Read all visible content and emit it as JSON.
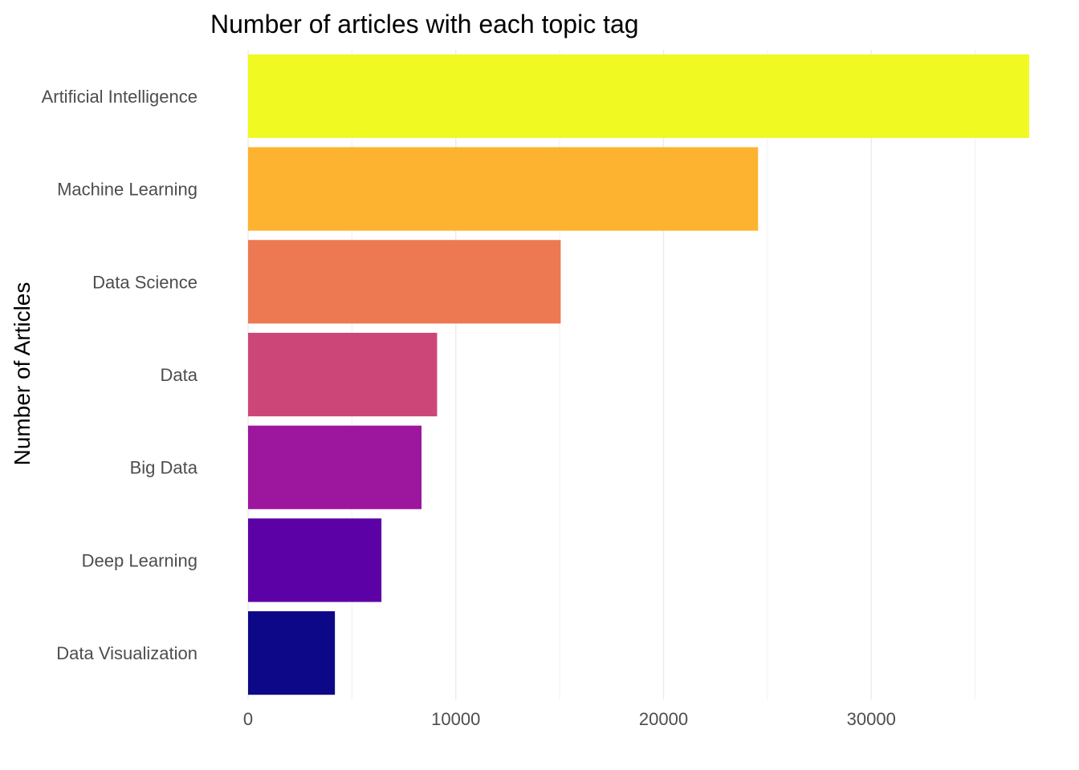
{
  "chart_data": {
    "type": "bar",
    "orientation": "horizontal",
    "title": "Number of articles with each topic tag",
    "xlabel": "",
    "ylabel": "Number of Articles",
    "categories": [
      "Artificial Intelligence",
      "Machine Learning",
      "Data Science",
      "Data",
      "Big Data",
      "Deep Learning",
      "Data Visualization"
    ],
    "values": [
      37600,
      24550,
      15050,
      9100,
      8350,
      6420,
      4180
    ],
    "colors": [
      "#F0F921",
      "#FDB32F",
      "#ED7953",
      "#CC4778",
      "#9C179E",
      "#5C01A6",
      "#0D0887"
    ],
    "xlim": [
      0,
      37600
    ],
    "xticks": [
      0,
      10000,
      20000,
      30000
    ],
    "xtick_labels": [
      "0",
      "10000",
      "20000",
      "30000"
    ],
    "grid": true,
    "legend": "none"
  }
}
